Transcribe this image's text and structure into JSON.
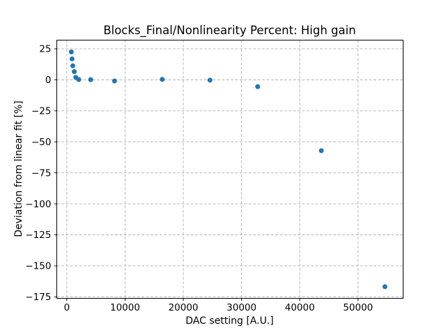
{
  "figure": {
    "background": "#ffffff"
  },
  "chart_data": {
    "type": "scatter",
    "title": "Blocks_Final/Nonlinearity Percent: High gain",
    "xlabel": "DAC setting [A.U.]",
    "ylabel": "Deviation from linear fit [%]",
    "x": [
      768,
      896,
      1024,
      1280,
      1536,
      2048,
      4096,
      8192,
      16384,
      24576,
      32768,
      43691,
      54613
    ],
    "y": [
      22.5,
      16.9,
      11.3,
      6.6,
      2.0,
      0.2,
      0.15,
      -0.9,
      0.35,
      -0.25,
      -5.5,
      -57.1,
      -166.8
    ],
    "xlim": [
      -1720,
      57740
    ],
    "ylim": [
      -176.2,
      32
    ],
    "xticks": [
      0,
      10000,
      20000,
      30000,
      40000,
      50000
    ],
    "xticklabels": [
      "0",
      "10000",
      "20000",
      "30000",
      "40000",
      "50000"
    ],
    "yticks": [
      25,
      0,
      -25,
      -50,
      -75,
      -100,
      -125,
      -150,
      -175
    ],
    "yticklabels": [
      "25",
      "0",
      "−25",
      "−50",
      "−75",
      "−100",
      "−125",
      "−150",
      "−175"
    ],
    "grid": "dashed",
    "legend": null,
    "marker_color": "#1f77b4",
    "grid_color": "#b0b0b0",
    "spine_color": "#000000",
    "tick_label_color": "#000000"
  }
}
